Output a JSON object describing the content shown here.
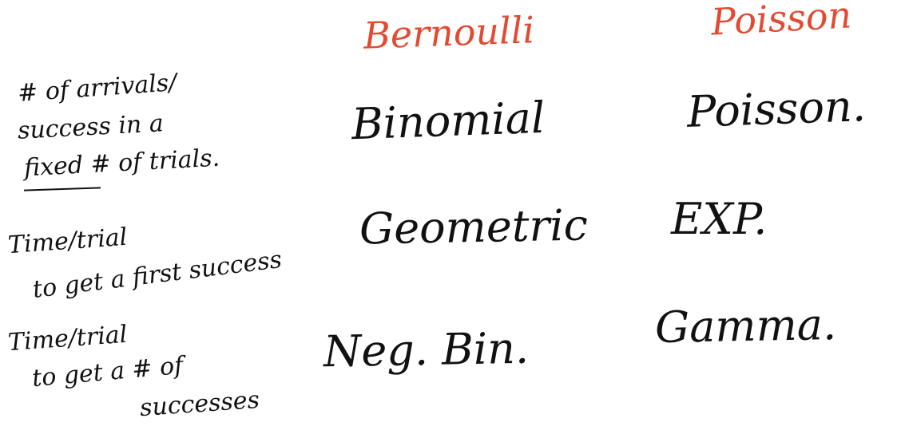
{
  "columns": {
    "bernoulli": "Bernoulli",
    "poisson": "Poisson"
  },
  "rows": [
    {
      "label_lines": [
        "# of arrivals/",
        "success in a",
        "fixed # of trials."
      ],
      "bernoulli": "Binomial",
      "poisson": "Poisson."
    },
    {
      "label_lines": [
        "Time/trial",
        "to get a first success"
      ],
      "bernoulli": "Geometric",
      "poisson": "EXP."
    },
    {
      "label_lines": [
        "Time/trial",
        "to get a # of",
        "successes"
      ],
      "bernoulli": "Neg. Bin.",
      "poisson": "Gamma."
    }
  ],
  "colors": {
    "header_ink": "#e24b32",
    "body_ink": "#111111",
    "background": "#ffffff"
  }
}
